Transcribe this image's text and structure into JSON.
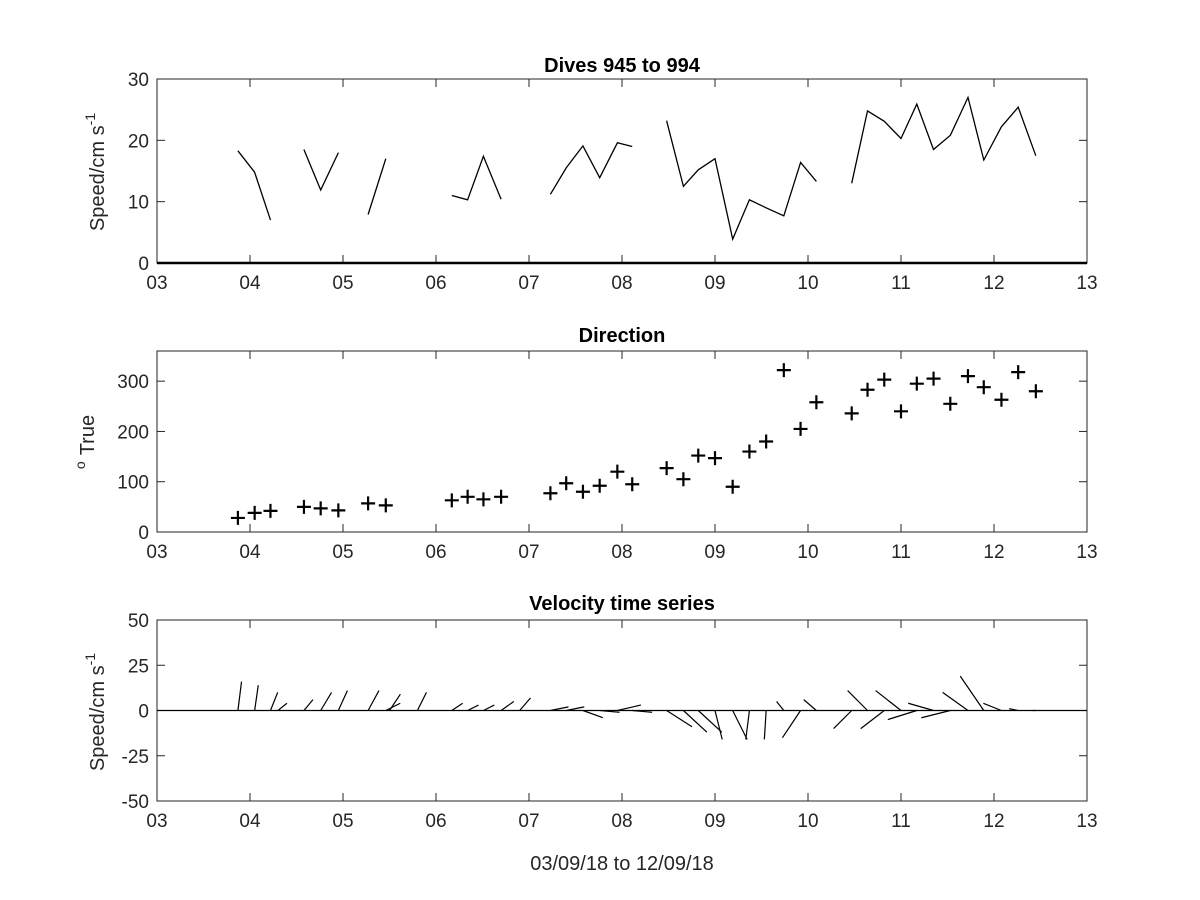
{
  "chart_data": [
    {
      "type": "line",
      "title": "Dives 945 to 994",
      "ylabel_main": "Speed/cm s",
      "ylabel_sup": "-1",
      "xlabel": "",
      "xlim": [
        3,
        13
      ],
      "ylim": [
        0,
        30
      ],
      "xticks": [
        "03",
        "04",
        "05",
        "06",
        "07",
        "08",
        "09",
        "10",
        "11",
        "12",
        "13"
      ],
      "yticks": [
        "0",
        "10",
        "20",
        "30"
      ],
      "segments": [
        [
          [
            3.87,
            18.3
          ],
          [
            4.05,
            14.8
          ],
          [
            4.22,
            7.0
          ]
        ],
        [
          [
            4.58,
            18.5
          ],
          [
            4.76,
            11.9
          ],
          [
            4.95,
            18.0
          ]
        ],
        [
          [
            5.27,
            7.9
          ],
          [
            5.46,
            17.0
          ]
        ],
        [
          [
            6.17,
            11.0
          ],
          [
            6.34,
            10.3
          ],
          [
            6.51,
            17.4
          ],
          [
            6.7,
            10.4
          ]
        ],
        [
          [
            7.23,
            11.2
          ],
          [
            7.4,
            15.5
          ],
          [
            7.58,
            19.1
          ],
          [
            7.76,
            13.9
          ],
          [
            7.95,
            19.6
          ],
          [
            8.11,
            19.0
          ]
        ],
        [
          [
            8.48,
            23.2
          ],
          [
            8.66,
            12.5
          ],
          [
            8.82,
            15.2
          ],
          [
            9.0,
            17.0
          ],
          [
            9.19,
            3.9
          ],
          [
            9.37,
            10.3
          ],
          [
            9.55,
            9.0
          ],
          [
            9.74,
            7.7
          ],
          [
            9.92,
            16.4
          ],
          [
            10.09,
            13.3
          ]
        ],
        [
          [
            10.47,
            13.0
          ],
          [
            10.64,
            24.8
          ],
          [
            10.82,
            23.1
          ],
          [
            11.0,
            20.3
          ],
          [
            11.17,
            25.9
          ],
          [
            11.35,
            18.5
          ],
          [
            11.53,
            20.8
          ],
          [
            11.72,
            27.0
          ],
          [
            11.89,
            16.8
          ],
          [
            12.08,
            22.2
          ],
          [
            12.26,
            25.4
          ],
          [
            12.45,
            17.5
          ]
        ]
      ]
    },
    {
      "type": "scatter",
      "title": "Direction",
      "ylabel_sup": "o",
      "ylabel_main": "True",
      "xlabel": "",
      "xlim": [
        3,
        13
      ],
      "ylim": [
        0,
        360
      ],
      "xticks": [
        "03",
        "04",
        "05",
        "06",
        "07",
        "08",
        "09",
        "10",
        "11",
        "12",
        "13"
      ],
      "yticks": [
        "0",
        "100",
        "200",
        "300"
      ],
      "points": [
        [
          3.87,
          28
        ],
        [
          4.05,
          38
        ],
        [
          4.22,
          42
        ],
        [
          4.58,
          50
        ],
        [
          4.76,
          47
        ],
        [
          4.95,
          43
        ],
        [
          5.27,
          57
        ],
        [
          5.46,
          53
        ],
        [
          6.17,
          63
        ],
        [
          6.34,
          70
        ],
        [
          6.51,
          65
        ],
        [
          6.7,
          70
        ],
        [
          7.23,
          77
        ],
        [
          7.4,
          97
        ],
        [
          7.58,
          80
        ],
        [
          7.76,
          92
        ],
        [
          7.95,
          120
        ],
        [
          8.11,
          95
        ],
        [
          8.48,
          127
        ],
        [
          8.66,
          105
        ],
        [
          8.82,
          152
        ],
        [
          9.0,
          147
        ],
        [
          9.19,
          90
        ],
        [
          9.37,
          160
        ],
        [
          9.55,
          180
        ],
        [
          9.74,
          322
        ],
        [
          9.92,
          205
        ],
        [
          10.09,
          258
        ],
        [
          10.47,
          236
        ],
        [
          10.64,
          283
        ],
        [
          10.82,
          303
        ],
        [
          11.0,
          240
        ],
        [
          11.17,
          295
        ],
        [
          11.35,
          305
        ],
        [
          11.53,
          255
        ],
        [
          11.72,
          310
        ],
        [
          11.89,
          288
        ],
        [
          12.08,
          263
        ],
        [
          12.26,
          318
        ],
        [
          12.45,
          280
        ]
      ]
    },
    {
      "type": "stick",
      "title": "Velocity time series",
      "ylabel_main": "Speed/cm s",
      "ylabel_sup": "-1",
      "xlabel": "03/09/18 to 12/09/18",
      "xlim": [
        3,
        13
      ],
      "ylim": [
        -50,
        50
      ],
      "xticks": [
        "03",
        "04",
        "05",
        "06",
        "07",
        "08",
        "09",
        "10",
        "11",
        "12",
        "13"
      ],
      "yticks": [
        "50",
        "25",
        "0",
        "-25",
        "-50"
      ],
      "sticks": [
        [
          3.87,
          2,
          16
        ],
        [
          4.05,
          2,
          14
        ],
        [
          4.22,
          4,
          10
        ],
        [
          4.3,
          5,
          4
        ],
        [
          4.58,
          5,
          6
        ],
        [
          4.76,
          6,
          10
        ],
        [
          4.95,
          5,
          11
        ],
        [
          5.27,
          6,
          11
        ],
        [
          5.46,
          8,
          4
        ],
        [
          5.5,
          6,
          9
        ],
        [
          5.8,
          5,
          10
        ],
        [
          6.17,
          6,
          4
        ],
        [
          6.34,
          6,
          3
        ],
        [
          6.51,
          6,
          3
        ],
        [
          6.7,
          7,
          5
        ],
        [
          6.9,
          6,
          7
        ],
        [
          7.23,
          10,
          2
        ],
        [
          7.4,
          10,
          2
        ],
        [
          7.58,
          11,
          -4
        ],
        [
          7.76,
          11,
          -1
        ],
        [
          7.95,
          13,
          3
        ],
        [
          8.11,
          11,
          -1
        ],
        [
          8.48,
          14,
          -9
        ],
        [
          8.66,
          13,
          -12
        ],
        [
          8.82,
          13,
          -12
        ],
        [
          9.0,
          4,
          -16
        ],
        [
          9.19,
          8,
          -16
        ],
        [
          9.37,
          -2,
          -16
        ],
        [
          9.55,
          -1,
          -16
        ],
        [
          9.74,
          -4,
          5
        ],
        [
          9.92,
          -10,
          -15
        ],
        [
          10.09,
          -7,
          6
        ],
        [
          10.47,
          -10,
          -10
        ],
        [
          10.64,
          -11,
          11
        ],
        [
          10.82,
          -13,
          -10
        ],
        [
          11.0,
          -14,
          11
        ],
        [
          11.17,
          -16,
          -5
        ],
        [
          11.35,
          -14,
          4
        ],
        [
          11.53,
          -16,
          -4
        ],
        [
          11.72,
          -14,
          10
        ],
        [
          11.89,
          -13,
          19
        ],
        [
          12.08,
          -10,
          4
        ],
        [
          12.26,
          -5,
          1
        ],
        [
          12.45,
          -2,
          0
        ]
      ]
    }
  ]
}
